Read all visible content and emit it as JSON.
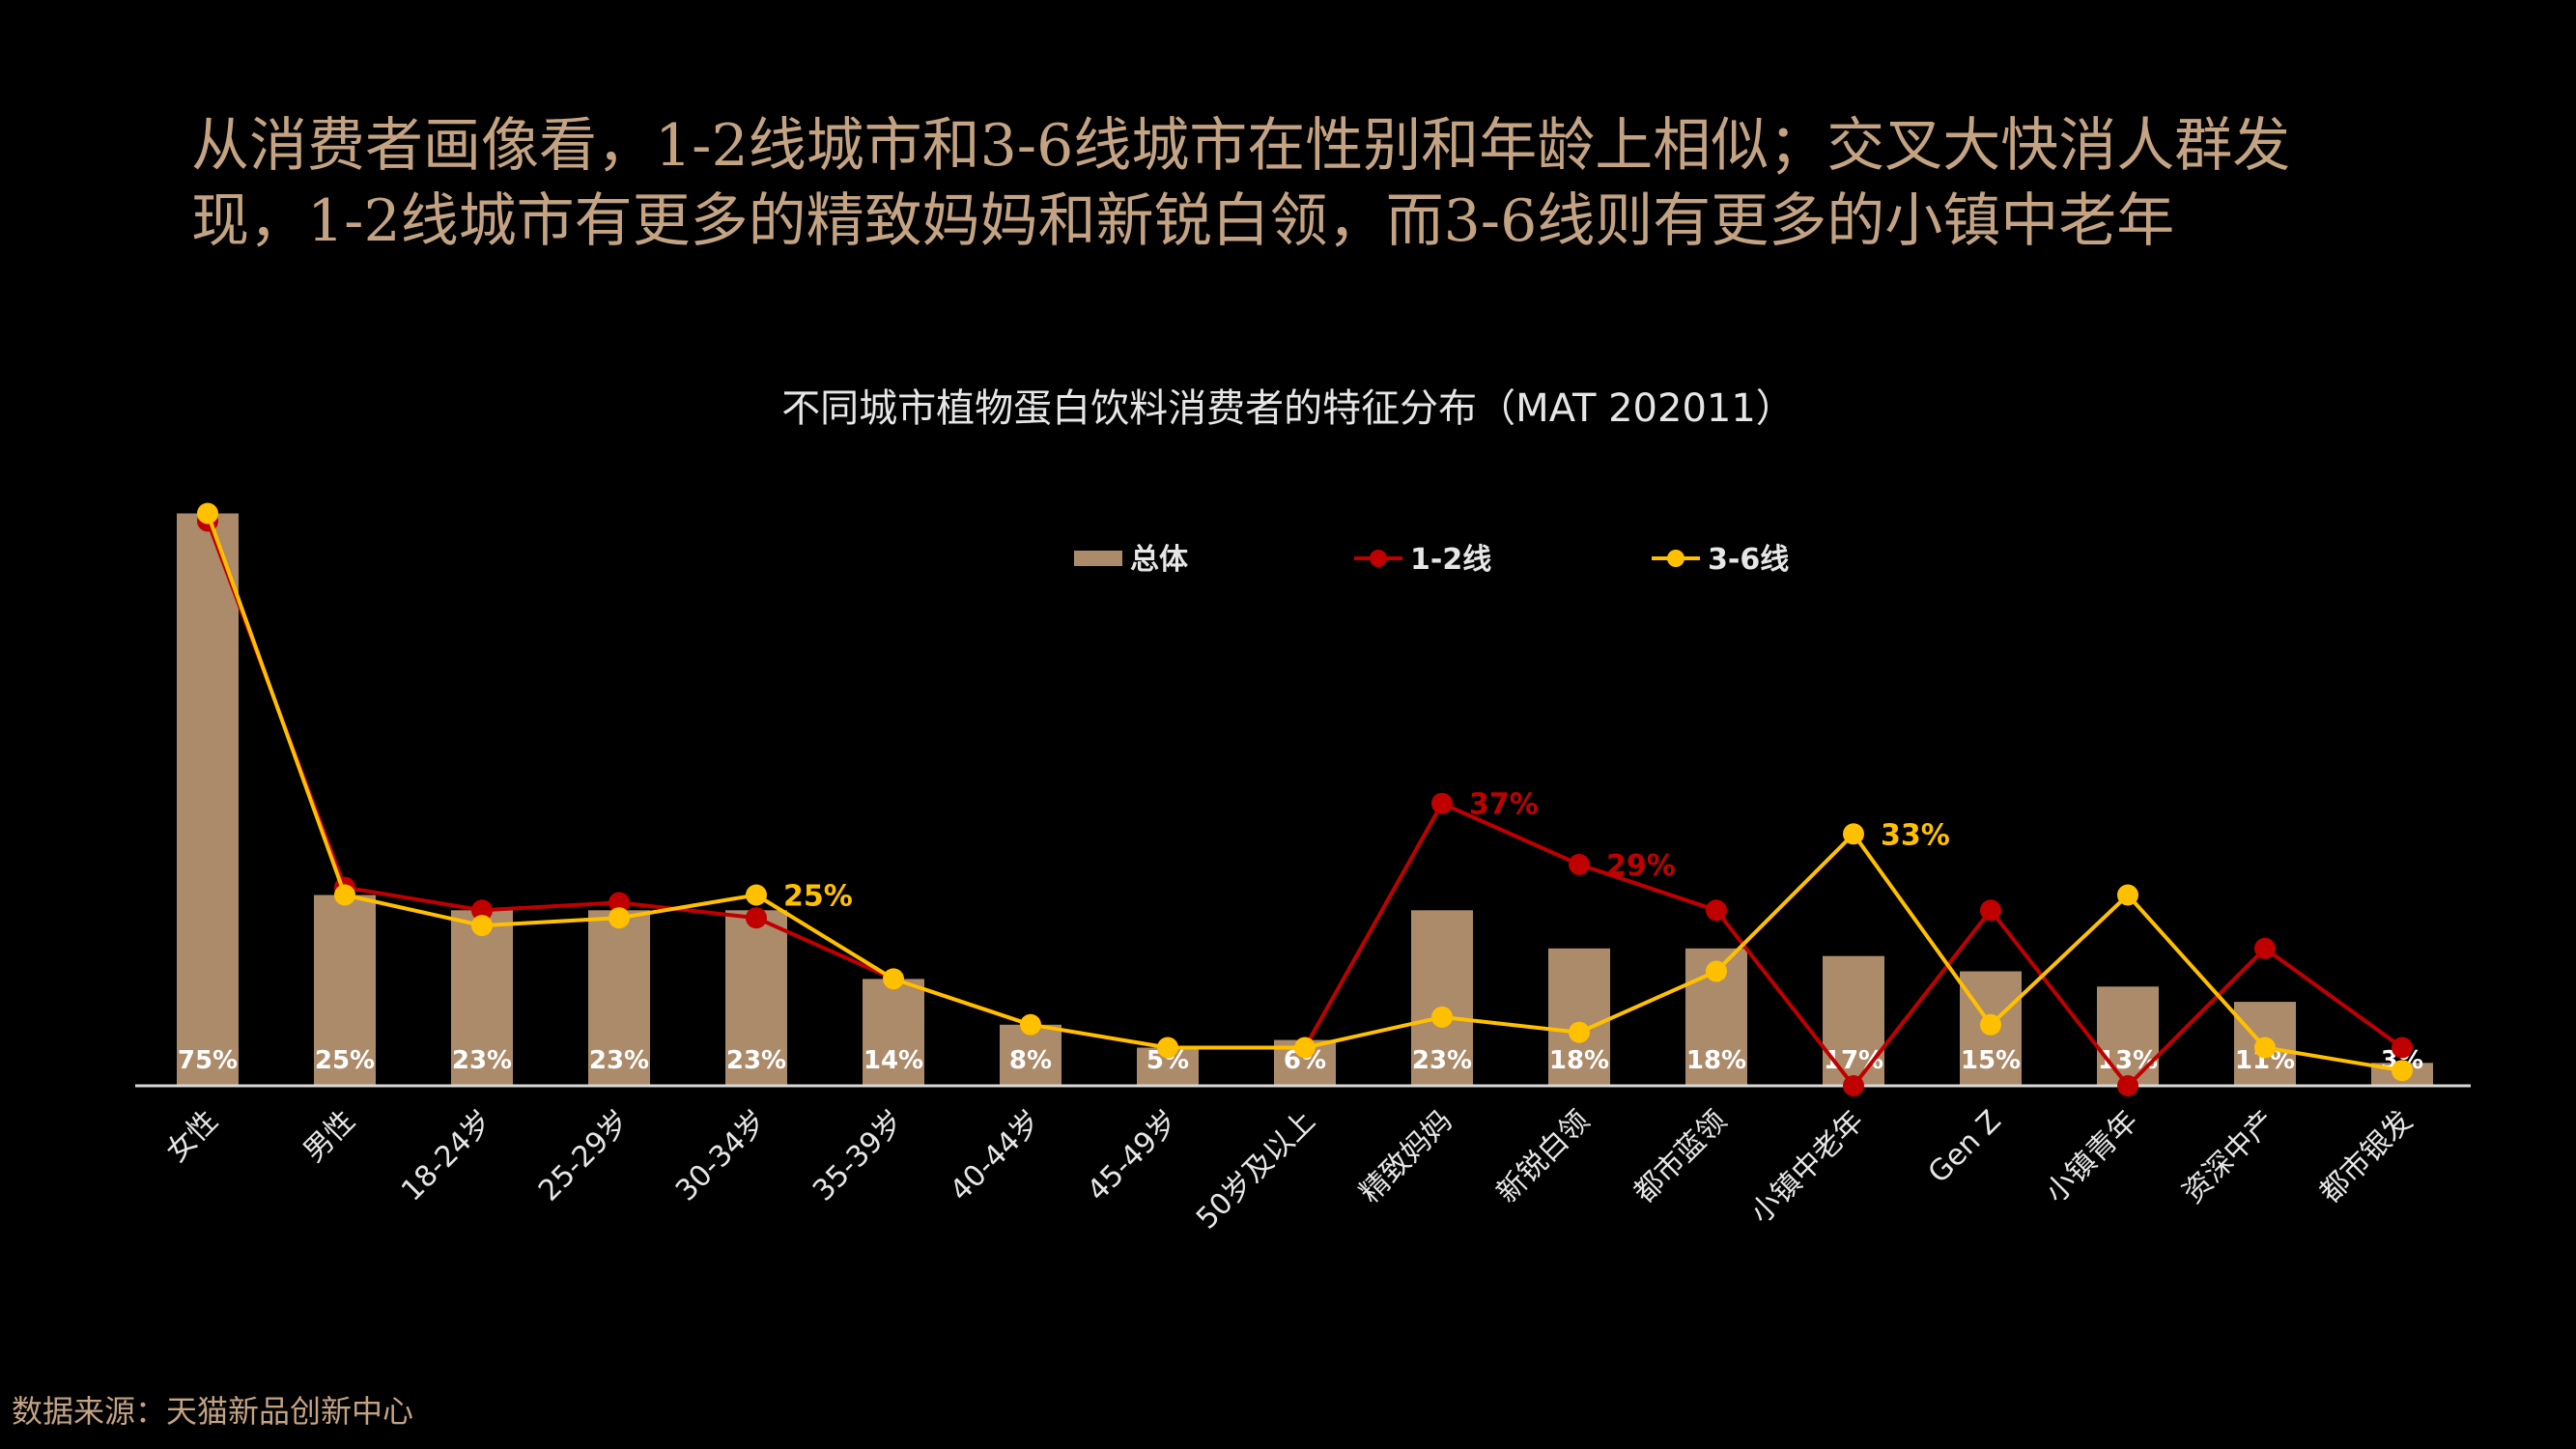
{
  "headline": {
    "line1": "从消费者画像看，1-2线城市和3-6线城市在性别和年龄上相似；交叉大快消人群发",
    "line2": "现，1-2线城市有更多的精致妈妈和新锐白领，而3-6线则有更多的小镇中老年"
  },
  "source": "数据来源：天猫新品创新中心",
  "colors": {
    "background": "#000000",
    "headline": "#C4A383",
    "bar": "#AC8B6A",
    "line_1_2": "#C00000",
    "line_3_6": "#FFC000",
    "axis": "#D9D9D9"
  },
  "chart_data": {
    "type": "bar",
    "title": "不同城市植物蛋白饮料消费者的特征分布（MAT 202011）",
    "categories": [
      "女性",
      "男性",
      "18-24岁",
      "25-29岁",
      "30-34岁",
      "35-39岁",
      "40-44岁",
      "45-49岁",
      "50岁及以上",
      "精致妈妈",
      "新锐白领",
      "都市蓝领",
      "小镇中老年",
      "Gen Z",
      "小镇青年",
      "资深中产",
      "都市银发"
    ],
    "legend_position": "top-center",
    "grid": false,
    "ylim": [
      0,
      80
    ],
    "series": [
      {
        "name": "总体",
        "type": "bar",
        "color": "#AC8B6A",
        "values": [
          75,
          25,
          23,
          23,
          23,
          14,
          8,
          5,
          6,
          23,
          18,
          18,
          17,
          15,
          13,
          11,
          3
        ],
        "labels": [
          "75%",
          "25%",
          "23%",
          "23%",
          "23%",
          "14%",
          "8%",
          "5%",
          "6%",
          "23%",
          "18%",
          "18%",
          "17%",
          "15%",
          "13%",
          "11%",
          "3%"
        ]
      },
      {
        "name": "1-2线",
        "type": "line",
        "color": "#C00000",
        "values": [
          74,
          26,
          23,
          24,
          22,
          14,
          8,
          5,
          5,
          37,
          29,
          23,
          0,
          23,
          0,
          18,
          5
        ]
      },
      {
        "name": "3-6线",
        "type": "line",
        "color": "#FFC000",
        "values": [
          75,
          25,
          21,
          22,
          25,
          14,
          8,
          5,
          5,
          9,
          7,
          15,
          33,
          8,
          25,
          5,
          2
        ]
      }
    ],
    "annotations": [
      {
        "series": "3-6线",
        "category": "30-34岁",
        "text": "25%"
      },
      {
        "series": "1-2线",
        "category": "精致妈妈",
        "text": "37%"
      },
      {
        "series": "1-2线",
        "category": "新锐白领",
        "text": "29%"
      },
      {
        "series": "3-6线",
        "category": "小镇中老年",
        "text": "33%"
      }
    ]
  }
}
